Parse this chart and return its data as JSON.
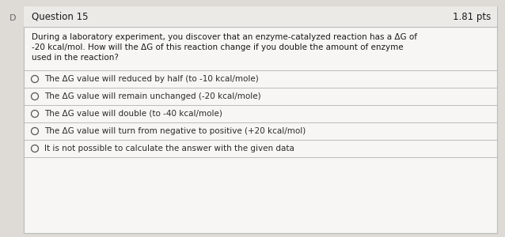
{
  "question_number": "Question 15",
  "points": "1.81 pts",
  "question_lines": [
    "During a laboratory experiment, you discover that an enzyme-catalyzed reaction has a ΔG of",
    "-20 kcal/mol. How will the ΔG of this reaction change if you double the amount of enzyme",
    "used in the reaction?"
  ],
  "choices": [
    "The ΔG value will reduced by half (to -10 kcal/mole)",
    "The ΔG value will remain unchanged (-20 kcal/mole)",
    "The ΔG value will double (to -40 kcal/mole)",
    "The ΔG value will turn from negative to positive (+20 kcal/mol)",
    "It is not possible to calculate the answer with the given data"
  ],
  "bg_color": "#dedad5",
  "card_bg": "#f7f6f4",
  "border_color": "#bbbbbb",
  "header_bg": "#eceae7",
  "text_color": "#1a1a1a",
  "choice_text_color": "#2a2a2a",
  "header_font_size": 8.5,
  "pts_font_size": 8.5,
  "question_font_size": 7.5,
  "choice_font_size": 7.5,
  "d_label_color": "#666666",
  "circle_color": "#555555"
}
